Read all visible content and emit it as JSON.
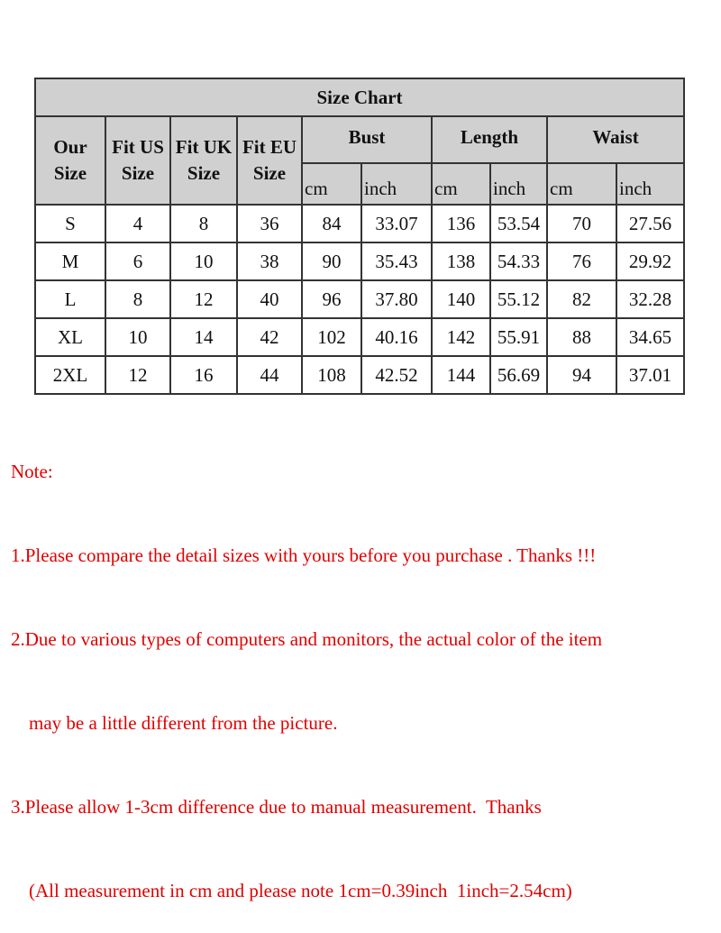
{
  "title": "Size Chart",
  "headers": {
    "our_size": [
      "Our",
      "Size"
    ],
    "fit_us": [
      "Fit US",
      "Size"
    ],
    "fit_uk": [
      "Fit UK",
      "Size"
    ],
    "fit_eu": [
      "Fit EU",
      "Size"
    ],
    "groups": [
      "Bust",
      "Length",
      "Waist"
    ],
    "units": [
      "cm",
      "inch",
      "cm",
      "inch",
      "cm",
      "inch"
    ]
  },
  "rows": [
    [
      "S",
      "4",
      "8",
      "36",
      "84",
      "33.07",
      "136",
      "53.54",
      "70",
      "27.56"
    ],
    [
      "M",
      "6",
      "10",
      "38",
      "90",
      "35.43",
      "138",
      "54.33",
      "76",
      "29.92"
    ],
    [
      "L",
      "8",
      "12",
      "40",
      "96",
      "37.80",
      "140",
      "55.12",
      "82",
      "32.28"
    ],
    [
      "XL",
      "10",
      "14",
      "42",
      "102",
      "40.16",
      "142",
      "55.91",
      "88",
      "34.65"
    ],
    [
      "2XL",
      "12",
      "16",
      "44",
      "108",
      "42.52",
      "144",
      "56.69",
      "94",
      "37.01"
    ]
  ],
  "notes": {
    "label": "Note:",
    "lines": [
      "1.Please compare the detail sizes with yours before you purchase . Thanks !!!",
      "2.Due to various types of computers and monitors, the actual color of the item",
      "may be a little different from the picture.",
      "3.Please allow 1-3cm difference due to manual measurement.  Thanks",
      "(All measurement in cm and please note 1cm=0.39inch  1inch=2.54cm)"
    ]
  },
  "colors": {
    "header_bg": "#d0d0d0",
    "note_text": "#e00000"
  }
}
